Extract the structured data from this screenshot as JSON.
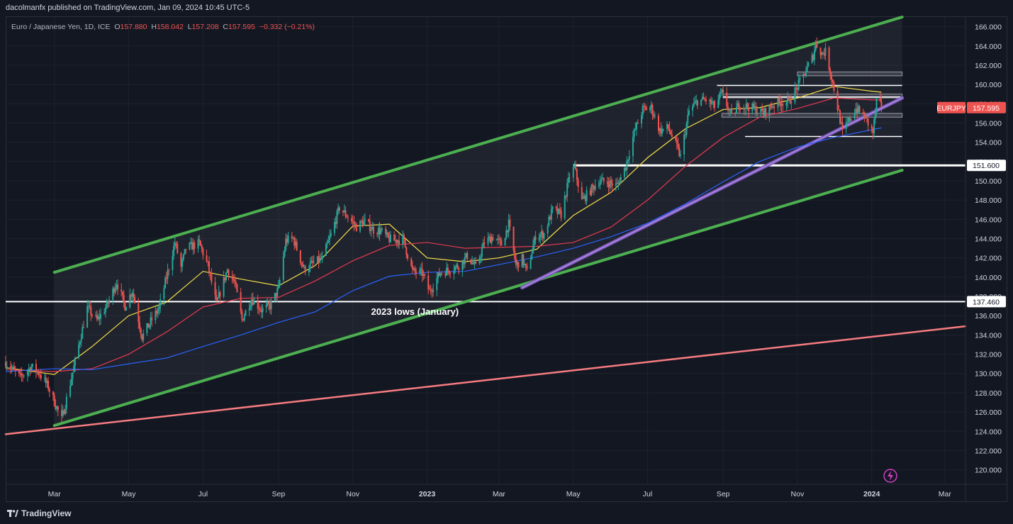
{
  "header": {
    "publish_text": "dacolmanfx published on TradingView.com, Jan 09, 2024 10:45 UTC-5"
  },
  "legend": {
    "symbol": "Euro / Japanese Yen, 1D, ICE",
    "open_label": "O",
    "open": "157.880",
    "high_label": "H",
    "high": "158.042",
    "low_label": "L",
    "low": "157.208",
    "close_label": "C",
    "close": "157.595",
    "change": "−0.332 (−0.21%)"
  },
  "footer": {
    "brand": "TradingView",
    "icon": "tradingview-logo-icon"
  },
  "colors": {
    "background": "#131722",
    "up": "#26a69a",
    "down": "#ef5350",
    "ma_fast": "#f5e04a",
    "ma_mid": "#e53950",
    "ma_slow": "#2962ff",
    "channel": "#4caf50",
    "support_trend": "#7e57c2",
    "long_trend": "#f77c80",
    "level": "#ffffff"
  },
  "chart_data": {
    "type": "candlestick",
    "symbol_tag": "EURJPY",
    "last_price": 157.595,
    "last_price_label": "157.595",
    "y_axis": {
      "ylim": [
        118.5,
        167
      ],
      "ticks": [
        "120.000",
        "122.000",
        "124.000",
        "126.000",
        "128.000",
        "130.000",
        "132.000",
        "134.000",
        "136.000",
        "138.000",
        "140.000",
        "142.000",
        "144.000",
        "146.000",
        "148.000",
        "150.000",
        "152.000",
        "154.000",
        "156.000",
        "158.000",
        "160.000",
        "162.000",
        "164.000",
        "166.000"
      ]
    },
    "x_axis": {
      "start": "2022-01-20",
      "end": "2024-03-18",
      "ticks": [
        {
          "date": "2022-03-01",
          "label": "Mar"
        },
        {
          "date": "2022-05-01",
          "label": "May"
        },
        {
          "date": "2022-07-01",
          "label": "Jul"
        },
        {
          "date": "2022-09-01",
          "label": "Sep"
        },
        {
          "date": "2022-11-01",
          "label": "Nov"
        },
        {
          "date": "2023-01-01",
          "label": "2023"
        },
        {
          "date": "2023-03-01",
          "label": "Mar"
        },
        {
          "date": "2023-05-01",
          "label": "May"
        },
        {
          "date": "2023-07-01",
          "label": "Jul"
        },
        {
          "date": "2023-09-01",
          "label": "Sep"
        },
        {
          "date": "2023-11-01",
          "label": "Nov"
        },
        {
          "date": "2024-01-01",
          "label": "2024"
        },
        {
          "date": "2024-03-01",
          "label": "Mar"
        }
      ]
    },
    "price_path": [
      [
        "2022-01-20",
        131.2
      ],
      [
        "2022-02-01",
        129.6
      ],
      [
        "2022-02-10",
        130.7
      ],
      [
        "2022-02-17",
        130.0
      ],
      [
        "2022-02-24",
        128.6
      ],
      [
        "2022-03-07",
        125.2
      ],
      [
        "2022-03-14",
        129.0
      ],
      [
        "2022-03-22",
        133.5
      ],
      [
        "2022-03-28",
        136.8
      ],
      [
        "2022-04-05",
        135.5
      ],
      [
        "2022-04-13",
        137.0
      ],
      [
        "2022-04-21",
        139.5
      ],
      [
        "2022-04-28",
        137.0
      ],
      [
        "2022-05-04",
        138.6
      ],
      [
        "2022-05-12",
        133.8
      ],
      [
        "2022-05-19",
        135.4
      ],
      [
        "2022-05-26",
        136.8
      ],
      [
        "2022-06-02",
        140.5
      ],
      [
        "2022-06-08",
        143.6
      ],
      [
        "2022-06-13",
        141.0
      ],
      [
        "2022-06-17",
        143.0
      ],
      [
        "2022-06-28",
        143.5
      ],
      [
        "2022-07-05",
        141.2
      ],
      [
        "2022-07-12",
        137.2
      ],
      [
        "2022-07-21",
        140.8
      ],
      [
        "2022-07-27",
        139.4
      ],
      [
        "2022-08-02",
        135.6
      ],
      [
        "2022-08-10",
        137.8
      ],
      [
        "2022-08-18",
        136.6
      ],
      [
        "2022-08-25",
        137.0
      ],
      [
        "2022-09-01",
        138.8
      ],
      [
        "2022-09-07",
        143.8
      ],
      [
        "2022-09-13",
        144.0
      ],
      [
        "2022-09-22",
        140.8
      ],
      [
        "2022-09-30",
        141.5
      ],
      [
        "2022-10-07",
        141.9
      ],
      [
        "2022-10-14",
        144.4
      ],
      [
        "2022-10-21",
        147.2
      ],
      [
        "2022-10-27",
        146.4
      ],
      [
        "2022-11-04",
        145.2
      ],
      [
        "2022-11-10",
        145.8
      ],
      [
        "2022-11-18",
        144.9
      ],
      [
        "2022-11-24",
        144.8
      ],
      [
        "2022-11-30",
        144.0
      ],
      [
        "2022-12-05",
        143.8
      ],
      [
        "2022-12-12",
        144.0
      ],
      [
        "2022-12-20",
        140.6
      ],
      [
        "2022-12-28",
        140.4
      ],
      [
        "2023-01-03",
        138.5
      ],
      [
        "2023-01-12",
        140.5
      ],
      [
        "2023-01-20",
        140.8
      ],
      [
        "2023-01-27",
        141.2
      ],
      [
        "2023-02-03",
        142.2
      ],
      [
        "2023-02-10",
        141.0
      ],
      [
        "2023-02-17",
        143.6
      ],
      [
        "2023-02-24",
        144.2
      ],
      [
        "2023-03-03",
        143.4
      ],
      [
        "2023-03-09",
        145.5
      ],
      [
        "2023-03-15",
        141.2
      ],
      [
        "2023-03-20",
        141.9
      ],
      [
        "2023-03-24",
        140.5
      ],
      [
        "2023-03-31",
        144.3
      ],
      [
        "2023-04-07",
        144.5
      ],
      [
        "2023-04-14",
        147.0
      ],
      [
        "2023-04-21",
        146.5
      ],
      [
        "2023-04-28",
        150.5
      ],
      [
        "2023-05-02",
        151.4
      ],
      [
        "2023-05-08",
        147.9
      ],
      [
        "2023-05-15",
        149.0
      ],
      [
        "2023-05-22",
        150.0
      ],
      [
        "2023-05-30",
        149.8
      ],
      [
        "2023-06-06",
        149.5
      ],
      [
        "2023-06-13",
        151.5
      ],
      [
        "2023-06-20",
        155.0
      ],
      [
        "2023-06-27",
        157.4
      ],
      [
        "2023-07-04",
        157.6
      ],
      [
        "2023-07-11",
        155.2
      ],
      [
        "2023-07-18",
        155.5
      ],
      [
        "2023-07-25",
        153.5
      ],
      [
        "2023-07-28",
        152.5
      ],
      [
        "2023-08-04",
        157.2
      ],
      [
        "2023-08-11",
        158.3
      ],
      [
        "2023-08-18",
        158.4
      ],
      [
        "2023-08-25",
        157.7
      ],
      [
        "2023-08-31",
        159.1
      ],
      [
        "2023-09-08",
        156.6
      ],
      [
        "2023-09-14",
        157.9
      ],
      [
        "2023-09-21",
        157.7
      ],
      [
        "2023-09-28",
        157.4
      ],
      [
        "2023-10-04",
        157.0
      ],
      [
        "2023-10-11",
        157.8
      ],
      [
        "2023-10-18",
        158.2
      ],
      [
        "2023-10-25",
        158.2
      ],
      [
        "2023-10-31",
        159.5
      ],
      [
        "2023-11-07",
        161.2
      ],
      [
        "2023-11-14",
        163.0
      ],
      [
        "2023-11-16",
        164.3
      ],
      [
        "2023-11-21",
        163.2
      ],
      [
        "2023-11-24",
        163.4
      ],
      [
        "2023-11-29",
        160.8
      ],
      [
        "2023-12-05",
        157.0
      ],
      [
        "2023-12-08",
        155.0
      ],
      [
        "2023-12-13",
        156.2
      ],
      [
        "2023-12-19",
        157.5
      ],
      [
        "2023-12-26",
        156.7
      ],
      [
        "2024-01-02",
        155.0
      ],
      [
        "2024-01-05",
        158.3
      ],
      [
        "2024-01-09",
        157.6
      ]
    ],
    "moving_averages": [
      {
        "color_key": "ma_fast",
        "points": [
          [
            "2022-01-20",
            130.6
          ],
          [
            "2022-03-01",
            129.9
          ],
          [
            "2022-04-01",
            132.8
          ],
          [
            "2022-05-01",
            136.0
          ],
          [
            "2022-06-01",
            137.4
          ],
          [
            "2022-07-01",
            140.6
          ],
          [
            "2022-08-01",
            139.8
          ],
          [
            "2022-09-01",
            139.1
          ],
          [
            "2022-10-01",
            141.2
          ],
          [
            "2022-11-01",
            145.3
          ],
          [
            "2022-12-01",
            145.5
          ],
          [
            "2023-01-01",
            142.0
          ],
          [
            "2023-02-01",
            141.6
          ],
          [
            "2023-03-01",
            142.0
          ],
          [
            "2023-04-01",
            142.9
          ],
          [
            "2023-05-01",
            146.4
          ],
          [
            "2023-06-01",
            148.8
          ],
          [
            "2023-07-01",
            152.4
          ],
          [
            "2023-08-01",
            155.4
          ],
          [
            "2023-09-01",
            157.4
          ],
          [
            "2023-10-01",
            157.6
          ],
          [
            "2023-11-01",
            158.6
          ],
          [
            "2023-12-01",
            159.8
          ],
          [
            "2024-01-01",
            159.3
          ],
          [
            "2024-01-09",
            159.2
          ]
        ]
      },
      {
        "color_key": "ma_mid",
        "points": [
          [
            "2022-01-20",
            130.4
          ],
          [
            "2022-03-01",
            130.2
          ],
          [
            "2022-04-01",
            130.5
          ],
          [
            "2022-05-01",
            132.0
          ],
          [
            "2022-06-01",
            134.3
          ],
          [
            "2022-07-01",
            136.9
          ],
          [
            "2022-08-01",
            137.8
          ],
          [
            "2022-09-01",
            137.9
          ],
          [
            "2022-10-01",
            139.6
          ],
          [
            "2022-11-01",
            141.7
          ],
          [
            "2022-12-01",
            143.3
          ],
          [
            "2023-01-01",
            143.6
          ],
          [
            "2023-02-01",
            143.0
          ],
          [
            "2023-03-01",
            143.1
          ],
          [
            "2023-04-01",
            143.2
          ],
          [
            "2023-05-01",
            143.6
          ],
          [
            "2023-06-01",
            145.2
          ],
          [
            "2023-07-01",
            148.0
          ],
          [
            "2023-08-01",
            151.5
          ],
          [
            "2023-09-01",
            154.5
          ],
          [
            "2023-10-01",
            156.6
          ],
          [
            "2023-11-01",
            157.5
          ],
          [
            "2023-12-01",
            158.6
          ],
          [
            "2024-01-01",
            158.4
          ],
          [
            "2024-01-09",
            158.4
          ]
        ]
      },
      {
        "color_key": "ma_slow",
        "points": [
          [
            "2022-01-20",
            130.2
          ],
          [
            "2022-03-01",
            130.5
          ],
          [
            "2022-04-01",
            130.4
          ],
          [
            "2022-05-01",
            131.0
          ],
          [
            "2022-06-01",
            131.6
          ],
          [
            "2022-07-01",
            132.8
          ],
          [
            "2022-08-01",
            134.0
          ],
          [
            "2022-09-01",
            135.3
          ],
          [
            "2022-10-01",
            136.4
          ],
          [
            "2022-11-01",
            138.6
          ],
          [
            "2022-12-01",
            140.1
          ],
          [
            "2023-01-01",
            140.5
          ],
          [
            "2023-02-01",
            140.6
          ],
          [
            "2023-03-01",
            141.3
          ],
          [
            "2023-04-01",
            142.1
          ],
          [
            "2023-05-01",
            143.0
          ],
          [
            "2023-06-01",
            144.2
          ],
          [
            "2023-07-01",
            145.6
          ],
          [
            "2023-08-01",
            147.6
          ],
          [
            "2023-09-01",
            149.9
          ],
          [
            "2023-10-01",
            152.0
          ],
          [
            "2023-11-01",
            153.5
          ],
          [
            "2023-12-01",
            154.5
          ],
          [
            "2024-01-01",
            155.3
          ],
          [
            "2024-01-09",
            155.5
          ]
        ]
      }
    ],
    "channel": {
      "upper": [
        [
          "2022-03-01",
          140.5
        ],
        [
          "2024-01-26",
          167.0
        ]
      ],
      "lower": [
        [
          "2022-03-01",
          124.6
        ],
        [
          "2024-01-26",
          151.1
        ]
      ]
    },
    "support_trendline": [
      [
        "2023-03-20",
        138.9
      ],
      [
        "2024-01-26",
        158.6
      ]
    ],
    "long_trendline": [
      [
        "2022-01-20",
        123.7
      ],
      [
        "2024-03-18",
        134.9
      ]
    ],
    "horizontal_levels": [
      {
        "price": 137.46,
        "label": "137.460",
        "from": "2022-01-20",
        "to": "2024-03-18",
        "width": 2
      },
      {
        "price": 151.6,
        "label": "151.600",
        "from": "2023-05-01",
        "to": "2024-03-18",
        "width": 3
      },
      {
        "price": 154.6,
        "from": "2023-09-19",
        "to": "2024-01-26",
        "width": 1.5
      },
      {
        "price": 159.9,
        "from": "2023-08-27",
        "to": "2024-01-26",
        "width": 1.5
      },
      {
        "price": 158.7,
        "from": "2023-09-01",
        "to": "2024-01-26",
        "width": 1.5
      }
    ],
    "zones": [
      {
        "low": 156.6,
        "high": 157.0,
        "from": "2023-08-31",
        "to": "2024-01-26"
      },
      {
        "low": 158.6,
        "high": 159.0,
        "from": "2023-09-01",
        "to": "2024-01-26"
      },
      {
        "low": 160.9,
        "high": 161.3,
        "from": "2023-11-01",
        "to": "2024-01-26"
      }
    ],
    "annotations": [
      {
        "text": "2023 lows (January)",
        "date": "2022-12-22",
        "price": 136.1
      }
    ]
  }
}
